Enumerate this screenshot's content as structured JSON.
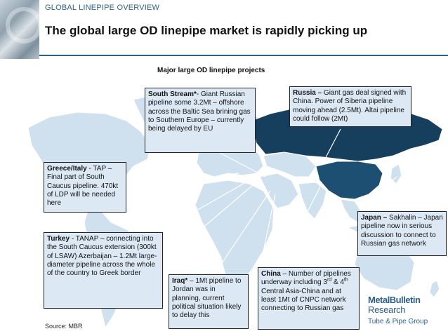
{
  "header": {
    "section_label": "GLOBAL LINEPIPE OVERVIEW",
    "title": "The global large OD linepipe market is rapidly picking up"
  },
  "map": {
    "caption": "Major large OD linepipe projects",
    "colors": {
      "land": "#cfe0ee",
      "russia": "#153f5c",
      "china": "#1d4f73",
      "sea_land_border": "#ffffff"
    }
  },
  "callouts": {
    "south_stream": {
      "name": "South Stream*",
      "text": "- Giant Russian pipeline some 3.2Mt – offshore across the Baltic Sea brining gas to Southern Europe – currently being delayed by EU"
    },
    "russia": {
      "name": "Russia –",
      "text": " Giant gas deal signed with China. Power of Siberia pipeline moving ahead (2.5Mt). Altai pipeline could follow (2Mt)"
    },
    "greece_italy": {
      "name": "Greece/Italy",
      "text": " - TAP – Final part of South Caucus pipeline. 470kt of LDP will be needed here"
    },
    "japan": {
      "name": "Japan –",
      "text": " Sakhalin – Japan pipeline now in serious discussion to connect to Russian gas network"
    },
    "turkey": {
      "name": "Turkey",
      "text": " - TANAP – connecting into the South Caucus extension (300kt of LSAW) Azerbaijan – 1.2Mt large-diameter pipeline across the whole of the country to Greek border"
    },
    "iraq": {
      "name": "Iraq*",
      "text": " – 1Mt pipeline to Jordan was in planning, current political situation likely to delay this"
    },
    "china": {
      "name": "China",
      "text_a": " – Number of pipelines underway including 3",
      "sup_a": "rd",
      "text_b": " & 4",
      "sup_b": "th",
      "text_c": " Central Asia-China and at least 1Mt of CNPC network connecting to Russian gas"
    }
  },
  "footer": {
    "source": "Source: MBR",
    "logo_line1": "MetalBulletin",
    "logo_line2": "Research",
    "logo_line3": "Tube & Pipe Group"
  }
}
